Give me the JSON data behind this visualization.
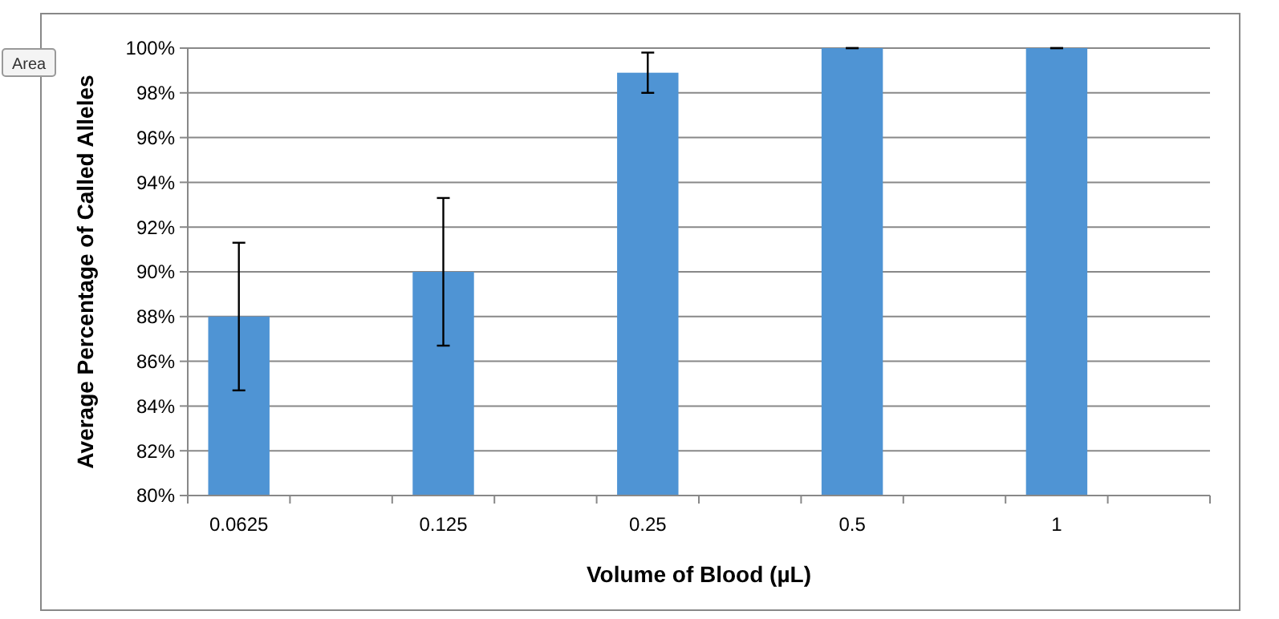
{
  "chart_data": {
    "type": "bar",
    "xlabel": "Volume of Blood (µL)",
    "ylabel": "Average Percentage of Called Alleles",
    "categories": [
      "0.0625",
      null,
      "0.125",
      null,
      "0.25",
      null,
      "0.5",
      null,
      "1",
      null
    ],
    "values": [
      88.0,
      null,
      90.0,
      null,
      98.9,
      null,
      100,
      null,
      100,
      null
    ],
    "errors": [
      3.3,
      null,
      3.3,
      null,
      0.9,
      null,
      0,
      null,
      0,
      null
    ],
    "color": "#4f94d4",
    "ylim": [
      80,
      100
    ],
    "yticks": [
      {
        "value": 80,
        "label": "80%"
      },
      {
        "value": 82,
        "label": "82%"
      },
      {
        "value": 84,
        "label": "84%"
      },
      {
        "value": 86,
        "label": "86%"
      },
      {
        "value": 88,
        "label": "88%"
      },
      {
        "value": 90,
        "label": "90%"
      },
      {
        "value": 92,
        "label": "92%"
      },
      {
        "value": 94,
        "label": "94%"
      },
      {
        "value": 96,
        "label": "96%"
      },
      {
        "value": 98,
        "label": "98%"
      },
      {
        "value": 100,
        "label": "100%"
      }
    ],
    "grid": "y",
    "annotations": [
      "Area"
    ]
  }
}
